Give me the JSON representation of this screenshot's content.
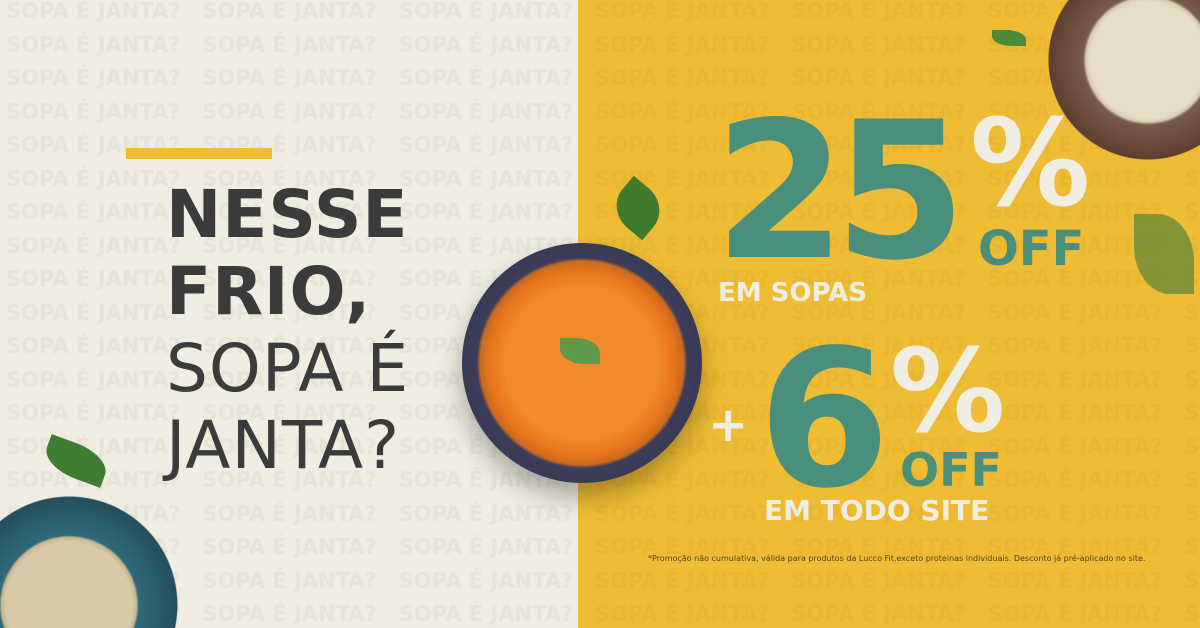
{
  "background_pattern_text": "SOPA É JANTA?",
  "headline": {
    "line1": "NESSE",
    "line2": "FRIO,",
    "line3": "SOPA É",
    "line4": "JANTA?"
  },
  "offer1": {
    "number": "25",
    "percent": "%",
    "off": "OFF",
    "subtitle": "EM SOPAS"
  },
  "offer2": {
    "plus": "+",
    "number": "6",
    "percent": "%",
    "off": "OFF",
    "subtitle": "EM TODO SITE"
  },
  "disclaimer": "*Promoção não cumulativa, válida para produtos da Lucco Fit,exceto proteinas individuais. Desconto já pré-aplicado no site.",
  "colors": {
    "beige": "#f0ede2",
    "yellow": "#efbd35",
    "teal": "#4a8f7c",
    "dark_text": "#3b3b3b"
  }
}
